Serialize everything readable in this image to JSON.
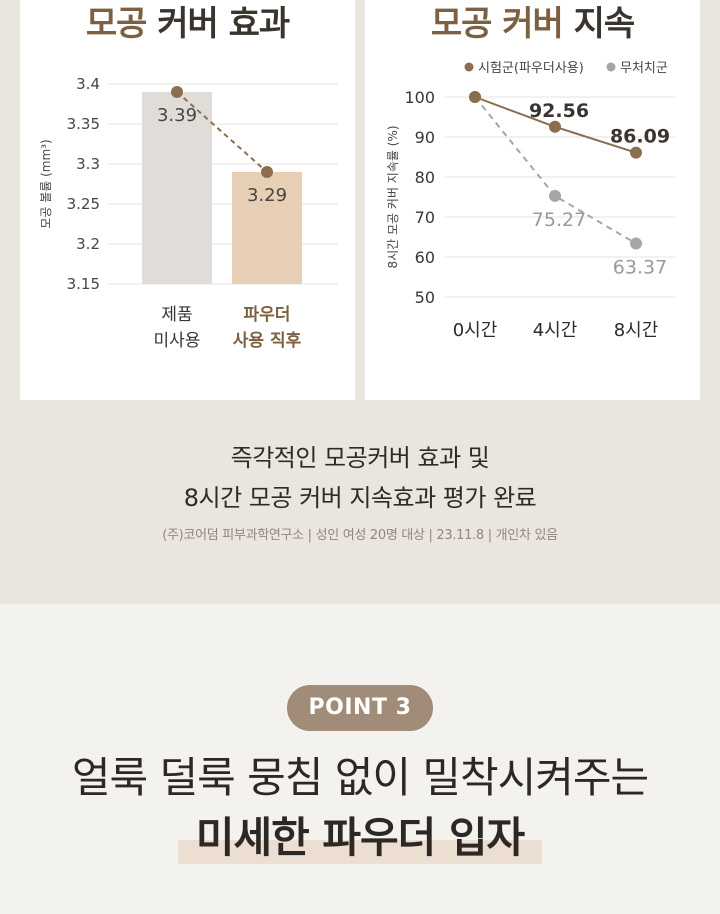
{
  "left_card": {
    "title_accent": "모공",
    "title_rest": " 커버 효과"
  },
  "right_card": {
    "title_accent": "모공 커버",
    "title_rest": " 지속"
  },
  "summary": {
    "line1": "즉각적인 모공커버 효과 및",
    "line2": "8시간 모공 커버 지속효과 평가 완료"
  },
  "footnote": "(주)코어덤 피부과학연구소 | 성인 여성 20명 대상 | 23.11.8 | 개인차 있음",
  "point_badge": "POINT 3",
  "headline": {
    "line1": "얼룩 덜룩 뭉침 없이 밀착시켜주는",
    "line2": "미세한 파우더 입자"
  },
  "colors": {
    "accent_brown": "#8b6e4e",
    "gray_series": "#a6a6a6",
    "bar_before": "#e0ddd8",
    "bar_after": "#e6cfb4"
  },
  "chart_data": [
    {
      "type": "bar",
      "categories": [
        "제품\n미사용",
        "파우더\n사용 직후"
      ],
      "values": [
        3.39,
        3.29
      ],
      "data_labels": [
        "3.39",
        "3.29"
      ],
      "ylabel": "모공 볼륨 (mm³)",
      "yticks": [
        "3.4",
        "3.35",
        "3.3",
        "3.25",
        "3.2",
        "3.15"
      ],
      "ylim": [
        3.15,
        3.4
      ],
      "grid": true,
      "trend_line": "dashed"
    },
    {
      "type": "line",
      "categories": [
        "0시간",
        "4시간",
        "8시간"
      ],
      "series": [
        {
          "name": "시험군(파우더사용)",
          "values": [
            100,
            92.56,
            86.09
          ],
          "labels": [
            "",
            "92.56",
            "86.09"
          ],
          "style": "solid"
        },
        {
          "name": "무처치군",
          "values": [
            100,
            75.27,
            63.37
          ],
          "labels": [
            "",
            "75.27",
            "63.37"
          ],
          "style": "dashed"
        }
      ],
      "ylabel": "8시간 모공 커버 지속률 (%)",
      "yticks": [
        "100",
        "90",
        "80",
        "70",
        "60",
        "50"
      ],
      "ylim": [
        50,
        100
      ],
      "grid": true,
      "legend": "top-right"
    }
  ]
}
